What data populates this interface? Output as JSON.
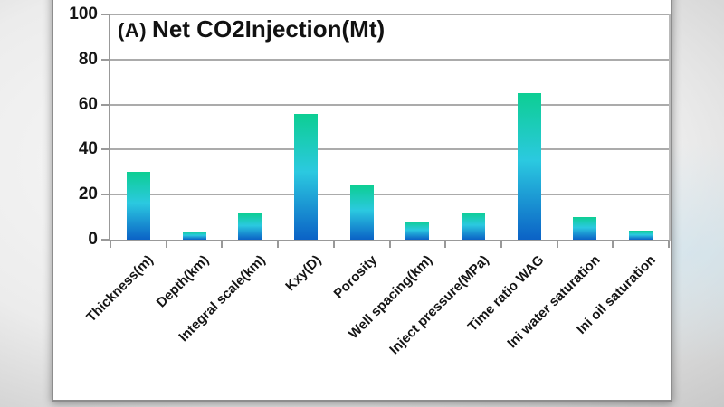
{
  "chart_data": {
    "type": "bar",
    "title": "(A) Net CO2Injection(Mt)",
    "title_prefix": "(A)",
    "title_main": "Net CO2Injection(Mt)",
    "categories": [
      "Thickness(m)",
      "Depth(km)",
      "Integral scale(km)",
      "Kxy(D)",
      "Porosity",
      "Well spacing(km)",
      "Inject pressure(MPa)",
      "Time ratio WAG",
      "Ini water saturation",
      "Ini oil saturation"
    ],
    "values": [
      30,
      3.5,
      11.5,
      56,
      24,
      8,
      12,
      65,
      10,
      4
    ],
    "xlabel": "",
    "ylabel": "",
    "ylim": [
      0,
      100
    ],
    "yticks": [
      0,
      20,
      40,
      60,
      80,
      100
    ],
    "grid": "horizontal",
    "legend_position": "none",
    "bar_color_gradient": {
      "top": "#0dce93",
      "middle": "#2bc9e0",
      "bottom": "#0b62c6"
    },
    "gridline_color": "#ababab",
    "axis_color": "#999999",
    "text_color": "#151515"
  }
}
